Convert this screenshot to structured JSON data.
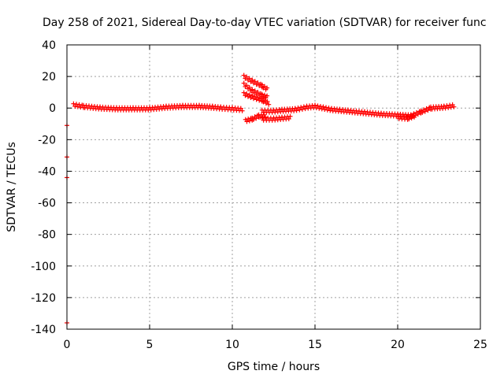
{
  "chart_data": {
    "type": "scatter",
    "title": "Day 258 of 2021, Sidereal Day-to-day VTEC variation (SDTVAR) for receiver func",
    "xlabel": "GPS time / hours",
    "ylabel": "SDTVAR / TECUs",
    "xlim": [
      0,
      25
    ],
    "ylim": [
      -140,
      40
    ],
    "xticks": [
      0,
      5,
      10,
      15,
      20,
      25
    ],
    "yticks": [
      40,
      20,
      0,
      -20,
      -40,
      -60,
      -80,
      -100,
      -120,
      -140
    ],
    "grid": true,
    "series": [
      {
        "name": "SDTVAR",
        "color": "#ff0000",
        "outliers": [
          [
            0.0,
            -11
          ],
          [
            0.0,
            -31
          ],
          [
            0.0,
            -44
          ],
          [
            0.0,
            -136
          ]
        ],
        "segments": [
          [
            [
              0.4,
              2
            ],
            [
              1.0,
              1
            ],
            [
              2.0,
              0
            ],
            [
              3.0,
              -0.5
            ],
            [
              4.0,
              -0.5
            ],
            [
              5.0,
              -0.5
            ],
            [
              6.0,
              0.5
            ],
            [
              7.0,
              1
            ],
            [
              8.0,
              1
            ],
            [
              8.8,
              0.5
            ],
            [
              9.3,
              0
            ],
            [
              10.0,
              -0.5
            ],
            [
              10.6,
              -1
            ]
          ],
          [
            [
              10.7,
              20
            ],
            [
              11.2,
              17
            ],
            [
              11.8,
              14
            ],
            [
              12.1,
              12
            ]
          ],
          [
            [
              10.7,
              15
            ],
            [
              11.2,
              11
            ],
            [
              11.8,
              8
            ],
            [
              12.1,
              7
            ]
          ],
          [
            [
              10.7,
              9
            ],
            [
              11.2,
              7
            ],
            [
              11.8,
              5
            ],
            [
              12.2,
              3
            ]
          ],
          [
            [
              10.8,
              -8
            ],
            [
              11.2,
              -7
            ],
            [
              11.6,
              -5
            ],
            [
              12.0,
              -5
            ]
          ],
          [
            [
              11.8,
              -7
            ],
            [
              12.5,
              -7
            ],
            [
              13.0,
              -6.5
            ],
            [
              13.5,
              -6
            ]
          ],
          [
            [
              11.8,
              -2
            ],
            [
              12.5,
              -2
            ],
            [
              13.0,
              -1.5
            ],
            [
              13.8,
              -1
            ],
            [
              14.5,
              0.5
            ],
            [
              15.0,
              1
            ],
            [
              15.5,
              0
            ],
            [
              16.0,
              -1
            ],
            [
              16.5,
              -1.5
            ],
            [
              17.0,
              -2
            ],
            [
              18.0,
              -3
            ],
            [
              19.0,
              -4
            ],
            [
              20.0,
              -4.5
            ],
            [
              20.8,
              -5
            ],
            [
              21.4,
              -2.5
            ],
            [
              22.0,
              0
            ],
            [
              22.8,
              0.5
            ],
            [
              23.4,
              1.5
            ]
          ],
          [
            [
              20.0,
              -6
            ],
            [
              20.6,
              -6.5
            ],
            [
              21.0,
              -5
            ]
          ]
        ]
      }
    ]
  }
}
